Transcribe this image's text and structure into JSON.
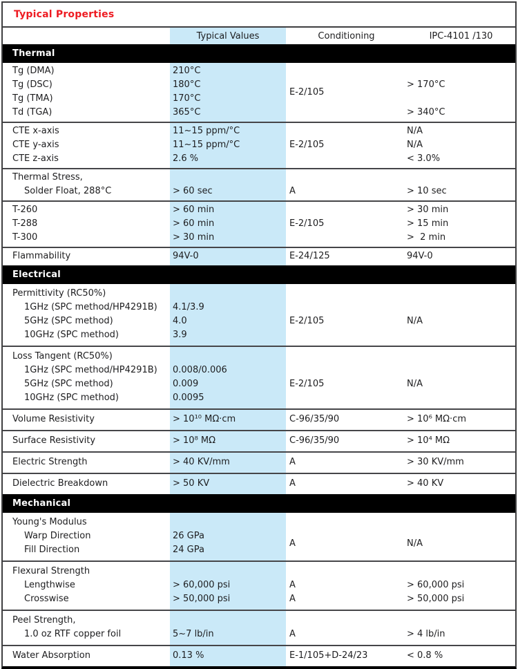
{
  "title": "Typical Properties",
  "colors": {
    "title_red": "#ee1b22",
    "highlight_blue": "#cae9f8",
    "section_bar_black": "#000000",
    "text": "#1d1d1f"
  },
  "header": {
    "typical": "Typical Values",
    "conditioning": "Conditioning",
    "ipc": "IPC-4101 /130"
  },
  "sections": [
    {
      "label": "Thermal",
      "groups": [
        {
          "cond_merged": "E-2/105",
          "rows": [
            {
              "label": "Tg (DMA)",
              "typical": "210°C"
            },
            {
              "label": "Tg (DSC)",
              "typical": "180°C",
              "ipc": "> 170°C"
            },
            {
              "label": "Tg (TMA)",
              "typical": "170°C"
            },
            {
              "label": "Td (TGA)",
              "typical": "365°C",
              "ipc": "> 340°C"
            }
          ]
        },
        {
          "rows": [
            {
              "label": "CTE x-axis",
              "typical": "11~15 ppm/°C",
              "ipc": "N/A"
            },
            {
              "label": "CTE y-axis",
              "typical": "11~15 ppm/°C",
              "cond": "E-2/105",
              "ipc": "N/A"
            },
            {
              "label": "CTE z-axis",
              "typical": "2.6 %",
              "ipc": "< 3.0%"
            }
          ]
        },
        {
          "rows": [
            {
              "label": "Thermal Stress,"
            },
            {
              "label": "Solder Float, 288°C",
              "indent": true,
              "typical": "> 60 sec",
              "cond": "A",
              "ipc": "> 10 sec"
            }
          ]
        },
        {
          "rows": [
            {
              "label": "T-260",
              "typical": "> 60 min",
              "ipc": "> 30 min"
            },
            {
              "label": "T-288",
              "typical": "> 60 min",
              "cond": "E-2/105",
              "ipc": "> 15 min"
            },
            {
              "label": "T-300",
              "typical": "> 30 min",
              "ipc": ">  2 min"
            }
          ]
        },
        {
          "rows": [
            {
              "label": "Flammability",
              "typical": "94V-0",
              "cond": "E-24/125",
              "ipc": "94V-0"
            }
          ]
        }
      ]
    },
    {
      "label": "Electrical",
      "groups": [
        {
          "pad": true,
          "rows": [
            {
              "label": "Permittivity (RC50%)"
            },
            {
              "label": "1GHz (SPC method/HP4291B)",
              "indent": true,
              "typical": "4.1/3.9"
            },
            {
              "label": "5GHz (SPC method)",
              "indent": true,
              "typical": "4.0",
              "cond": "E-2/105",
              "ipc": "N/A"
            },
            {
              "label": "10GHz (SPC method)",
              "indent": true,
              "typical": "3.9"
            }
          ]
        },
        {
          "pad": true,
          "rows": [
            {
              "label": "Loss Tangent (RC50%)"
            },
            {
              "label": "1GHz (SPC method/HP4291B)",
              "indent": true,
              "typical": "0.008/0.006"
            },
            {
              "label": "5GHz (SPC method)",
              "indent": true,
              "typical": "0.009",
              "cond": "E-2/105",
              "ipc": "N/A"
            },
            {
              "label": "10GHz (SPC method)",
              "indent": true,
              "typical": "0.0095"
            }
          ]
        },
        {
          "pad": true,
          "rows": [
            {
              "label": "Volume Resistivity",
              "typical": "> 10¹⁰ MΩ·cm",
              "cond": "C-96/35/90",
              "ipc": "> 10⁶ MΩ·cm"
            }
          ]
        },
        {
          "pad": true,
          "rows": [
            {
              "label": "Surface Resistivity",
              "typical": "> 10⁸ MΩ",
              "cond": "C-96/35/90",
              "ipc": "> 10⁴ MΩ"
            }
          ]
        },
        {
          "pad": true,
          "rows": [
            {
              "label": "Electric Strength",
              "typical": "> 40 KV/mm",
              "cond": "A",
              "ipc": "> 30 KV/mm"
            }
          ]
        },
        {
          "pad": true,
          "rows": [
            {
              "label": "Dielectric Breakdown",
              "typical": "> 50 KV",
              "cond": "A",
              "ipc": "> 40 KV"
            }
          ]
        }
      ]
    },
    {
      "label": "Mechanical",
      "groups": [
        {
          "pad": true,
          "cond_merged": "A",
          "ipc_merged": "N/A",
          "rows": [
            {
              "label": "Young's Modulus"
            },
            {
              "label": "Warp Direction",
              "indent": true,
              "typical": "26 GPa"
            },
            {
              "label": "Fill Direction",
              "indent": true,
              "typical": "24 GPa"
            }
          ]
        },
        {
          "pad": true,
          "rows": [
            {
              "label": "Flexural Strength"
            },
            {
              "label": "Lengthwise",
              "indent": true,
              "typical": "> 60,000 psi",
              "cond": "A",
              "ipc": "> 60,000 psi"
            },
            {
              "label": "Crosswise",
              "indent": true,
              "typical": "> 50,000 psi",
              "cond": "A",
              "ipc": "> 50,000 psi"
            }
          ]
        },
        {
          "pad": true,
          "rows": [
            {
              "label": "Peel Strength,"
            },
            {
              "label": "1.0 oz RTF copper foil",
              "indent": true,
              "typical": "5~7 lb/in",
              "cond": "A",
              "ipc": "> 4 lb/in"
            }
          ]
        },
        {
          "pad": true,
          "rows": [
            {
              "label": "Water Absorption",
              "typical": "0.13 %",
              "cond": "E-1/105+D-24/23",
              "ipc": "< 0.8 %"
            }
          ]
        }
      ]
    }
  ]
}
